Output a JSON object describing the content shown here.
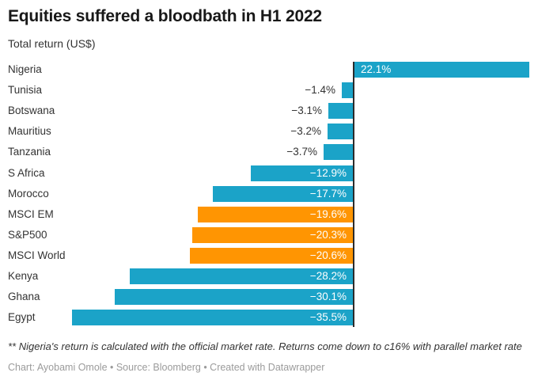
{
  "colors": {
    "blue": "#1ba3c8",
    "orange": "#ff9502",
    "baseline": "#2b2b2b",
    "title_text": "#181818",
    "label_text": "#333333",
    "inside_value_text": "#ffffff",
    "credits_text": "#9b9b9b",
    "background": "#ffffff"
  },
  "chart_data": {
    "type": "bar",
    "orientation": "horizontal",
    "title": "Equities suffered a bloodbath in H1 2022",
    "subtitle": "Total return (US$)",
    "xlabel": "",
    "ylabel": "",
    "xlim": [
      -35.5,
      22.1
    ],
    "grid": false,
    "zero_baseline": true,
    "categories": [
      "Nigeria",
      "Tunisia",
      "Botswana",
      "Mauritius",
      "Tanzania",
      "S Africa",
      "Morocco",
      "MSCI EM",
      "S&P500",
      "MSCI World",
      "Kenya",
      "Ghana",
      "Egypt"
    ],
    "values": [
      22.1,
      -1.4,
      -3.1,
      -3.2,
      -3.7,
      -12.9,
      -17.7,
      -19.6,
      -20.3,
      -20.6,
      -28.2,
      -30.1,
      -35.5
    ],
    "value_labels": [
      "22.1%",
      "−1.4%",
      "−3.1%",
      "−3.2%",
      "−3.7%",
      "−12.9%",
      "−17.7%",
      "−19.6%",
      "−20.3%",
      "−20.6%",
      "−28.2%",
      "−30.1%",
      "−35.5%"
    ],
    "bar_color_keys": [
      "blue",
      "blue",
      "blue",
      "blue",
      "blue",
      "blue",
      "blue",
      "orange",
      "orange",
      "orange",
      "blue",
      "blue",
      "blue"
    ]
  },
  "footer": {
    "footnote": "** Nigeria's return is calculated with the official market rate. Returns come down to c16% with parallel market rate",
    "credits": "Chart: Ayobami Omole • Source: Bloomberg • Created with Datawrapper"
  }
}
